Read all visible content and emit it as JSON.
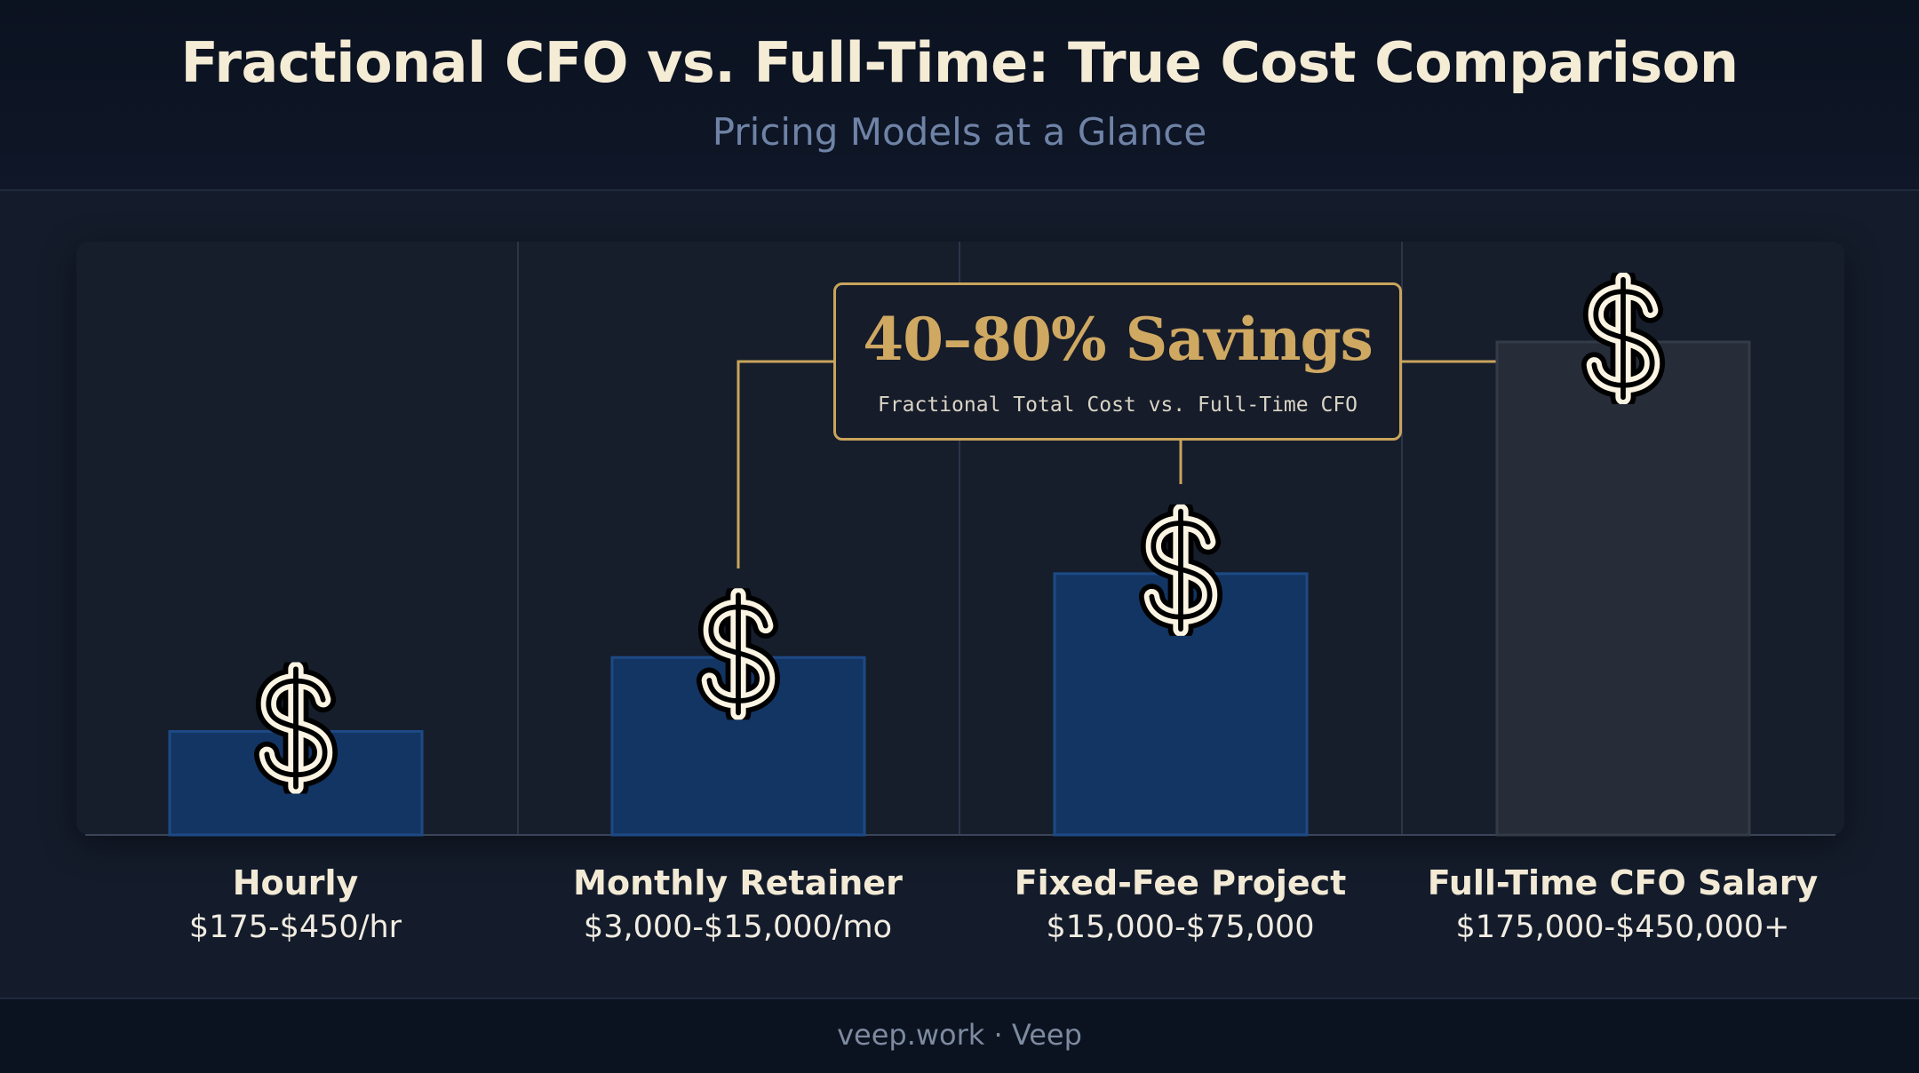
{
  "title": "Fractional CFO vs. Full-Time: True Cost Comparison",
  "subtitle": "Pricing Models at a Glance",
  "callout": {
    "headline": "40–80% Savings",
    "subtext": "Fractional Total Cost vs. Full-Time CFO"
  },
  "footer": "veep.work · Veep",
  "colors": {
    "fractional_bar": "#133563",
    "fulltime_bar": "#262c38",
    "accent_gold": "#c9a45c",
    "icon_fill": "#fbf4e3"
  },
  "icon": "dollar-sign-icon",
  "chart_data": {
    "type": "bar",
    "categories": [
      "Hourly",
      "Monthly Retainer",
      "Fixed-Fee Project",
      "Full-Time CFO Salary"
    ],
    "price_labels": [
      "$175-$450/hr",
      "$3,000-$15,000/mo",
      "$15,000-$75,000",
      "$175,000-$450,000+"
    ],
    "values": [
      0.21,
      0.36,
      0.53,
      1.0
    ],
    "ylim": [
      0,
      1.2
    ],
    "grid": false,
    "legend": "none"
  }
}
